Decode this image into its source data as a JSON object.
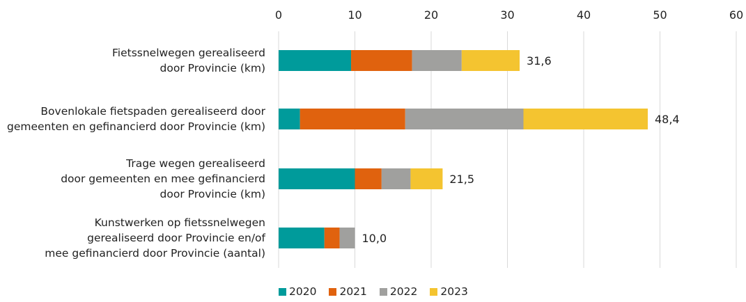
{
  "chart_data": {
    "type": "bar",
    "orientation": "horizontal",
    "stacked": true,
    "categories": [
      "Fietssnelwegen gerealiseerd\ndoor Provincie (km)",
      "Bovenlokale fietspaden gerealiseerd door\ngemeenten en gefinancierd door Provincie (km)",
      "Trage wegen gerealiseerd \ndoor gemeenten en mee gefinancierd\ndoor Provincie (km)",
      "Kunstwerken op fietssnelwegen\ngerealiseerd door Provincie en/of\nmee gefinancierd door Provincie (aantal)"
    ],
    "series": [
      {
        "name": "2020",
        "color": "#009B9B",
        "values": [
          9.5,
          2.8,
          10.0,
          6.0
        ]
      },
      {
        "name": "2021",
        "color": "#E0620E",
        "values": [
          8.0,
          13.8,
          3.5,
          2.0
        ]
      },
      {
        "name": "2022",
        "color": "#A0A09E",
        "values": [
          6.5,
          15.5,
          3.8,
          2.0
        ]
      },
      {
        "name": "2023",
        "color": "#F4C430",
        "values": [
          7.6,
          16.3,
          4.2,
          0.0
        ]
      }
    ],
    "totals": [
      "31,6",
      "48,4",
      "21,5",
      "10,0"
    ],
    "xlim": [
      0,
      60
    ],
    "xticks": [
      "0",
      "10",
      "20",
      "30",
      "40",
      "50",
      "60"
    ],
    "xaxis_position": "top",
    "grid": true,
    "legend_position": "bottom"
  }
}
